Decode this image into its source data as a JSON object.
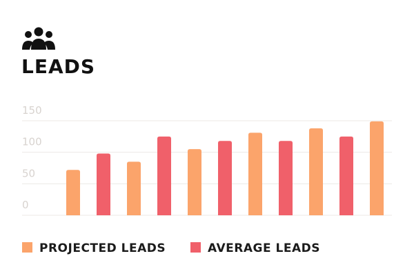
{
  "chart_data": {
    "type": "bar",
    "title": "LEADS",
    "categories": [
      null,
      null,
      null,
      null,
      null,
      null,
      null,
      null,
      null,
      null,
      null
    ],
    "series": [
      {
        "name": "PROJECTED LEADS",
        "color": "#fba46b",
        "values": [
          72,
          null,
          85,
          null,
          105,
          null,
          131,
          null,
          138,
          null,
          149
        ]
      },
      {
        "name": "AVERAGE LEADS",
        "color": "#f0606a",
        "values": [
          null,
          98,
          null,
          125,
          null,
          118,
          null,
          118,
          null,
          125,
          null
        ]
      }
    ],
    "ylim": [
      0,
      150
    ],
    "yticks": [
      0,
      50,
      100,
      150
    ],
    "grid": true,
    "legend": "bottom"
  }
}
